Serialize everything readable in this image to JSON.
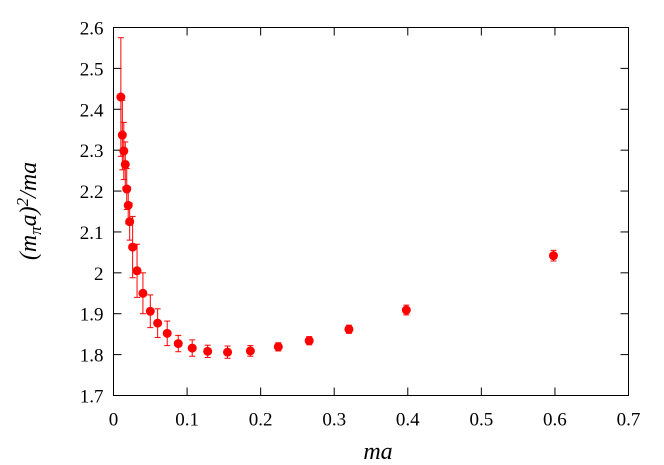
{
  "chart_data": {
    "type": "scatter",
    "xlabel": "ma",
    "ylabel": {
      "pre": "(m",
      "sub": "π",
      "mid": "a)",
      "sup": "2",
      "post": "/ma"
    },
    "xlim": [
      0,
      0.7
    ],
    "ylim": [
      1.7,
      2.6
    ],
    "xticks": [
      "0",
      "0.1",
      "0.2",
      "0.3",
      "0.4",
      "0.5",
      "0.6",
      "0.7"
    ],
    "yticks": [
      "1.7",
      "1.8",
      "1.9",
      "2",
      "2.1",
      "2.2",
      "2.3",
      "2.4",
      "2.5",
      "2.6"
    ],
    "grid": false,
    "color": "#ff0000",
    "points": [
      {
        "x": 0.01,
        "y": 2.43,
        "err": 0.145
      },
      {
        "x": 0.012,
        "y": 2.337,
        "err": 0.085
      },
      {
        "x": 0.014,
        "y": 2.298,
        "err": 0.07
      },
      {
        "x": 0.016,
        "y": 2.265,
        "err": 0.055
      },
      {
        "x": 0.018,
        "y": 2.205,
        "err": 0.05
      },
      {
        "x": 0.02,
        "y": 2.165,
        "err": 0.045
      },
      {
        "x": 0.022,
        "y": 2.125,
        "err": 0.045
      },
      {
        "x": 0.026,
        "y": 2.063,
        "err": 0.075
      },
      {
        "x": 0.032,
        "y": 2.005,
        "err": 0.065
      },
      {
        "x": 0.04,
        "y": 1.95,
        "err": 0.05
      },
      {
        "x": 0.05,
        "y": 1.906,
        "err": 0.04
      },
      {
        "x": 0.06,
        "y": 1.877,
        "err": 0.035
      },
      {
        "x": 0.073,
        "y": 1.852,
        "err": 0.03
      },
      {
        "x": 0.088,
        "y": 1.827,
        "err": 0.02
      },
      {
        "x": 0.107,
        "y": 1.816,
        "err": 0.02
      },
      {
        "x": 0.128,
        "y": 1.808,
        "err": 0.015
      },
      {
        "x": 0.155,
        "y": 1.806,
        "err": 0.015
      },
      {
        "x": 0.186,
        "y": 1.809,
        "err": 0.013
      },
      {
        "x": 0.224,
        "y": 1.819,
        "err": 0.01
      },
      {
        "x": 0.266,
        "y": 1.834,
        "err": 0.01
      },
      {
        "x": 0.32,
        "y": 1.862,
        "err": 0.01
      },
      {
        "x": 0.398,
        "y": 1.909,
        "err": 0.012
      },
      {
        "x": 0.598,
        "y": 2.042,
        "err": 0.013
      }
    ]
  }
}
